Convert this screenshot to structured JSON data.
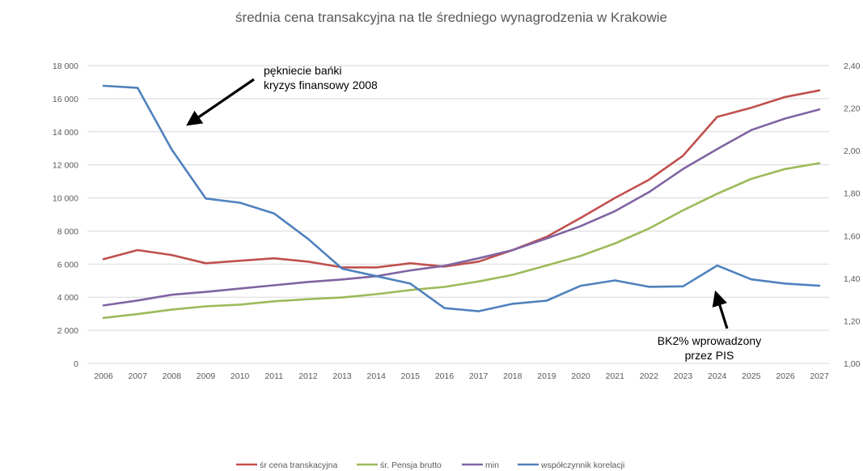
{
  "chart_data": {
    "type": "line",
    "title": "średnia cena transakcyjna na tle średniego wynagrodzenia w Krakowie",
    "categories": [
      "2006",
      "2007",
      "2008",
      "2009",
      "2010",
      "2011",
      "2012",
      "2013",
      "2014",
      "2015",
      "2016",
      "2017",
      "2018",
      "2019",
      "2020",
      "2021",
      "2022",
      "2023",
      "2024",
      "2025",
      "2026",
      "2027"
    ],
    "y_left": {
      "min": 0,
      "max": 18000,
      "ticks": [
        "0",
        "2 000",
        "4 000",
        "6 000",
        "8 000",
        "10 000",
        "12 000",
        "14 000",
        "16 000",
        "18 000"
      ],
      "tick_values": [
        0,
        2000,
        4000,
        6000,
        8000,
        10000,
        12000,
        14000,
        16000,
        18000
      ]
    },
    "y_right": {
      "min": 1.0,
      "max": 2.4,
      "ticks": [
        "1,00",
        "1,20",
        "1,40",
        "1,60",
        "1,80",
        "2,00",
        "2,20",
        "2,40"
      ],
      "tick_values": [
        1.0,
        1.2,
        1.4,
        1.6,
        1.8,
        2.0,
        2.2,
        2.4
      ]
    },
    "grid": true,
    "legend_position": "bottom",
    "series": [
      {
        "name": "śr cena transkacyjna",
        "axis": "left",
        "color": "#c0504d",
        "values": [
          6300,
          6850,
          6550,
          6050,
          6200,
          6350,
          6150,
          5800,
          5800,
          6050,
          5850,
          6150,
          6850,
          7650,
          8800,
          10000,
          11100,
          12550,
          14900,
          15450,
          16100,
          16500
        ]
      },
      {
        "name": "śr. Pensja brutto",
        "axis": "left",
        "color": "#9bbb59",
        "values": [
          2750,
          2980,
          3250,
          3450,
          3550,
          3750,
          3880,
          3980,
          4180,
          4430,
          4620,
          4950,
          5350,
          5920,
          6500,
          7250,
          8150,
          9250,
          10250,
          11150,
          11750,
          12100
        ]
      },
      {
        "name": "min",
        "axis": "left",
        "color": "#8064a2",
        "values": [
          3500,
          3800,
          4150,
          4320,
          4520,
          4720,
          4920,
          5070,
          5270,
          5620,
          5900,
          6350,
          6850,
          7550,
          8300,
          9200,
          10350,
          11750,
          12950,
          14100,
          14800,
          15350
        ]
      },
      {
        "name": "współczynnik korelacji",
        "axis": "right",
        "color": "#4f81bd",
        "values": [
          2.305,
          2.295,
          2.005,
          1.775,
          1.755,
          1.705,
          1.585,
          1.445,
          1.41,
          1.375,
          1.26,
          1.245,
          1.28,
          1.295,
          1.365,
          1.39,
          1.36,
          1.362,
          1.46,
          1.395,
          1.375,
          1.365
        ]
      }
    ],
    "annotations": [
      {
        "lines": [
          "pękniecie bańki",
          "kryzys finansowy 2008"
        ]
      },
      {
        "lines": [
          "BK2% wprowadzony",
          "przez PIS"
        ]
      }
    ]
  }
}
